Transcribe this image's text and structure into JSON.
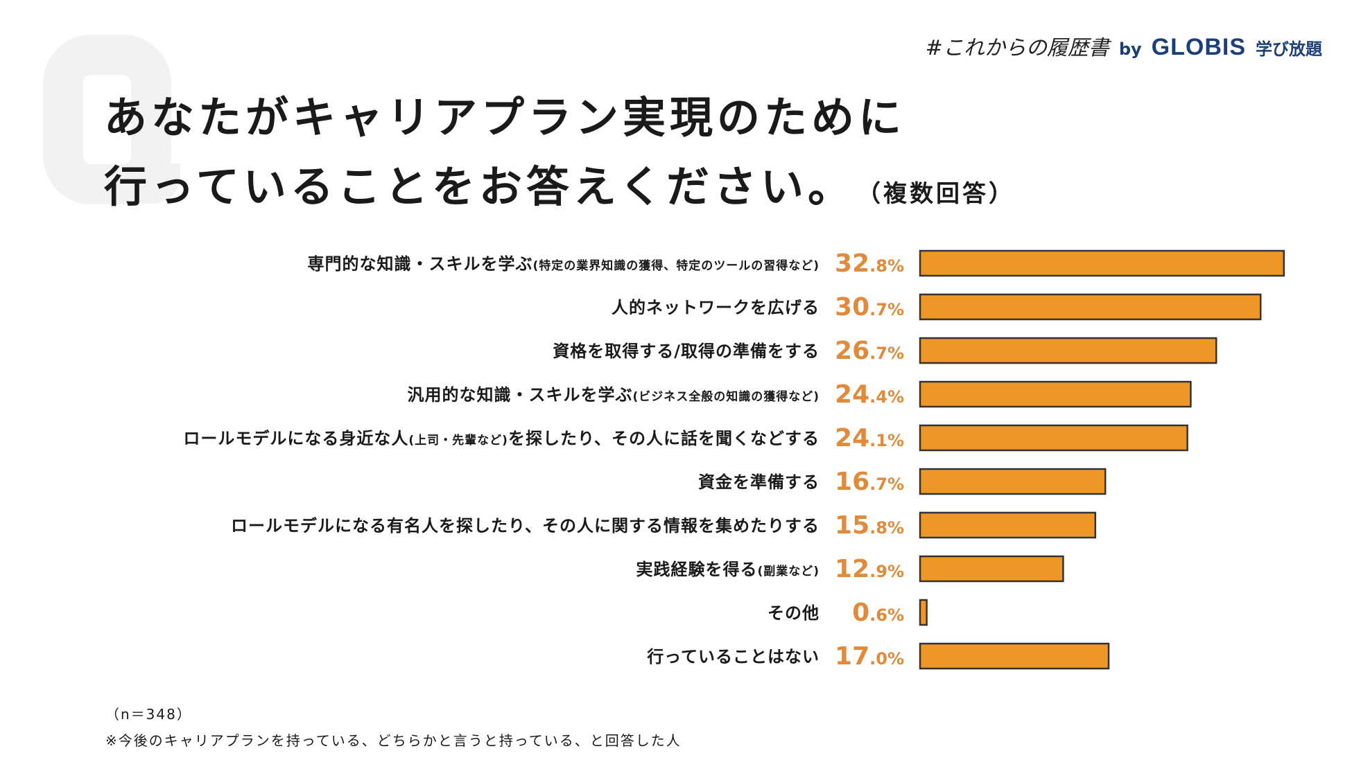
{
  "header": {
    "brand_series": "#これからの履歴書",
    "brand_by": "by",
    "brand_logo": "GLOBIS",
    "brand_logo_sub": "学び放題"
  },
  "question": {
    "line1": "あなたがキャリアプラン実現のために",
    "line2": "行っていることをお答えください。",
    "note": "（複数回答）"
  },
  "colors": {
    "bar_fill": "#ee9626",
    "bar_stroke": "#333333",
    "value_text": "#e08a3c"
  },
  "chart_data": {
    "type": "bar",
    "orientation": "horizontal",
    "unit": "%",
    "categories": [
      {
        "main": "専門的な知識・スキルを学ぶ",
        "note": "(特定の業界知識の獲得、特定のツールの習得など)"
      },
      {
        "main": "人的ネットワークを広げる",
        "note": ""
      },
      {
        "main": "資格を取得する/取得の準備をする",
        "note": ""
      },
      {
        "main": "汎用的な知識・スキルを学ぶ",
        "note": "(ビジネス全般の知識の獲得など)"
      },
      {
        "main": "ロールモデルになる身近な人",
        "note": "(上司・先輩など)",
        "tail": "を探したり、その人に話を聞くなどする"
      },
      {
        "main": "資金を準備する",
        "note": ""
      },
      {
        "main": "ロールモデルになる有名人を探したり、その人に関する情報を集めたりする",
        "note": ""
      },
      {
        "main": "実践経験を得る",
        "note": "(副業など)"
      },
      {
        "main": "その他",
        "note": ""
      },
      {
        "main": "行っていることはない",
        "note": ""
      }
    ],
    "values": [
      32.8,
      30.7,
      26.7,
      24.4,
      24.1,
      16.7,
      15.8,
      12.9,
      0.6,
      17.0
    ]
  },
  "footnotes": {
    "n": "（n＝348）",
    "scope": "※今後のキャリアプランを持っている、どちらかと言うと持っている、と回答した人"
  }
}
